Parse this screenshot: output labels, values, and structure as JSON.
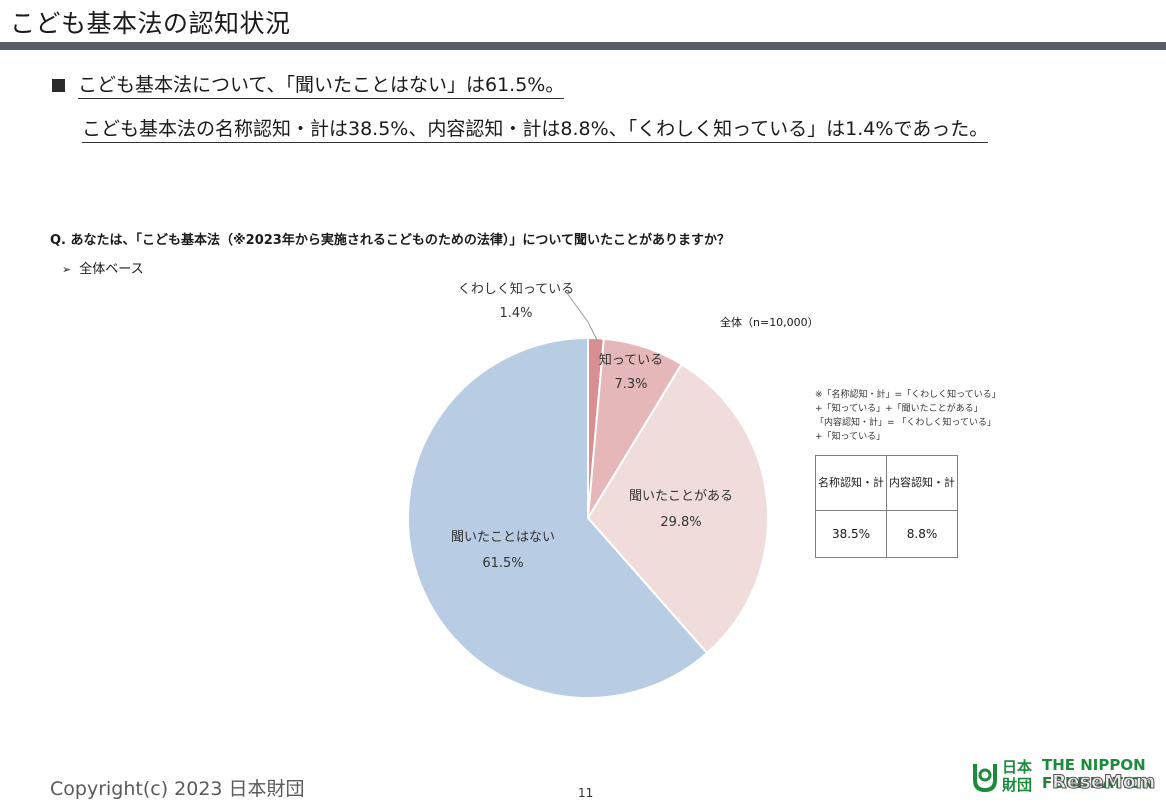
{
  "header": {
    "title": "こども基本法の認知状況"
  },
  "summary": {
    "line1": "こども基本法について、「聞いたことはない」は61.5%。",
    "line2": "こども基本法の名称認知・計は38.5%、内容認知・計は8.8%、「くわしく知っている」は1.4%であった。"
  },
  "question": "Q. あなたは、「こども基本法（※2023年から実施されるこどものための法律）」について聞いたことがありますか？",
  "base": {
    "arrow": "➢",
    "label": "全体ベース"
  },
  "sample_label": "全体（n=10,000）",
  "note_lines": [
    "※「名称認知・計」=「くわしく知っている」",
    "+「知っている」+「聞いたことがある」",
    "「内容認知・計」= 「くわしく知っている」",
    "+「知っている」"
  ],
  "summary_table": {
    "headers": [
      "名称認知・計",
      "内容認知・計"
    ],
    "values": [
      "38.5%",
      "8.8%"
    ]
  },
  "chart_data": {
    "type": "pie",
    "categories": [
      "くわしく知っている",
      "知っている",
      "聞いたことがある",
      "聞いたことはない"
    ],
    "values": [
      1.4,
      7.3,
      29.8,
      61.5
    ],
    "value_labels": [
      "1.4%",
      "7.3%",
      "29.8%",
      "61.5%"
    ],
    "colors": [
      "#d98e92",
      "#e6b7b8",
      "#f1dcdc",
      "#b8cce4"
    ],
    "start": "12 o'clock",
    "direction": "clockwise"
  },
  "footer": {
    "copyright": "Copyright(c)  2023 日本財団",
    "page": "11",
    "logo_jp": "日本財団",
    "logo_en_1": "THE NIPPON",
    "logo_en_2": "FOUNDATION",
    "watermark": "ReseMom"
  }
}
